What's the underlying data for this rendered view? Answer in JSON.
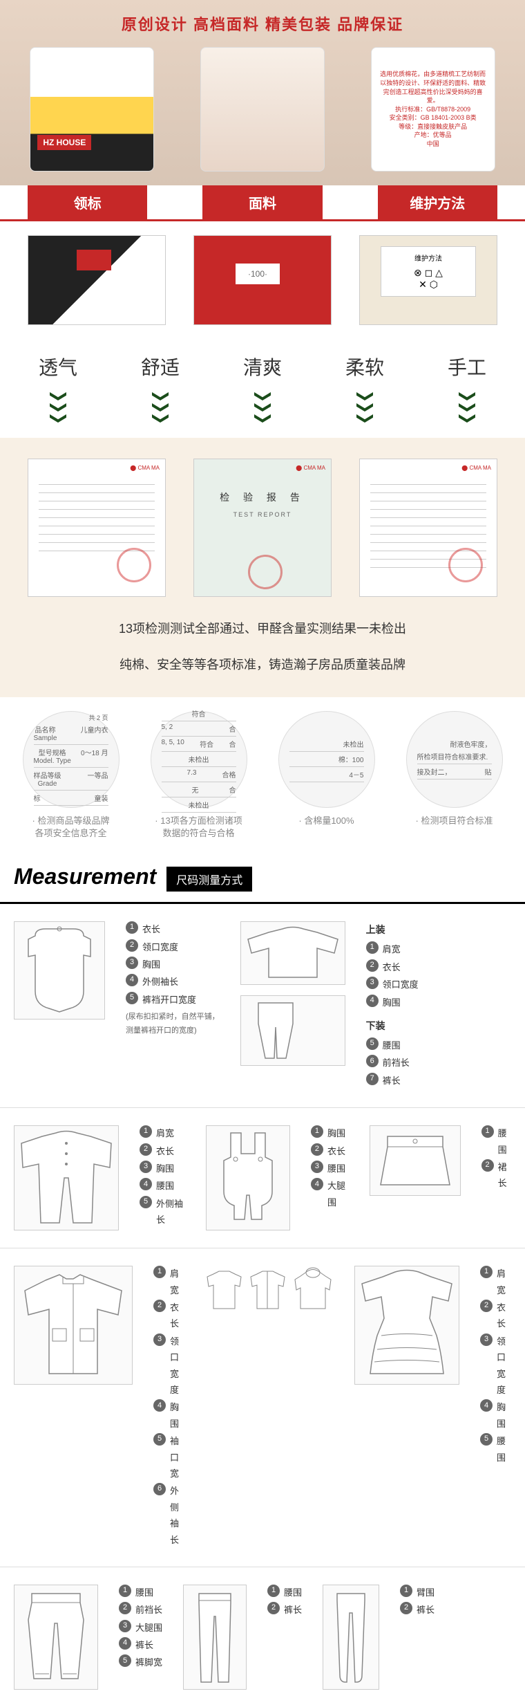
{
  "header": {
    "title": "原创设计  高档面料  精美包装  品牌保证",
    "brand_label": "HZ HOUSE",
    "pack3_text": "选用优质棉花，由多道精梳工艺纺制而\n以独特的设计、环保舒适的面料、精致\n完创造工程超高性价比深受妈妈的喜爱。\n执行标准：GB/T8878-2009\n安全类别：GB 18401-2003 B类\n等级：直接接触皮肤产品\n产地：优等品\n中国",
    "brand_color": "#c62828"
  },
  "tabs": {
    "t1": "领标",
    "t2": "面料",
    "t3": "维护方法"
  },
  "detail": {
    "size_label": "·100·",
    "care_title": "维护方法",
    "care_icons": "⊗ ◻ △\n✕ ⬡"
  },
  "features": {
    "f1": "透气",
    "f2": "舒适",
    "f3": "清爽",
    "f4": "柔软",
    "f5": "手工",
    "arrow_color": "#1b4d1b"
  },
  "cert": {
    "report_title": "检 验 报 告",
    "report_sub": "TEST REPORT",
    "text1": "13项检测测试全部通过、甲醛含量实测结果一未检出",
    "text2": "纯棉、安全等等各项标准，铸造瀚子房品质童装品牌"
  },
  "circles": {
    "c1": {
      "header": "共 2 页",
      "rows": [
        [
          "品名称\nSample",
          "儿童内衣"
        ],
        [
          "型号规格\nModel. Type",
          "0～18 月"
        ],
        [
          "样品等级\nGrade",
          "一等品"
        ],
        [
          "标",
          "童装"
        ]
      ],
      "caption": "· 检测商品等级品牌\n各项安全信息齐全"
    },
    "c2": {
      "rows": [
        [
          "",
          "符合",
          ""
        ],
        [
          "5, 2",
          "",
          "合"
        ],
        [
          "8, 5, 10",
          "符合",
          "合"
        ],
        [
          "",
          "未检出",
          ""
        ],
        [
          "",
          "7.3",
          "合格"
        ],
        [
          "",
          "无",
          "合"
        ],
        [
          "",
          "未检出",
          ""
        ]
      ],
      "caption": "· 13项各方面检测诸项\n数据的符合与合格"
    },
    "c3": {
      "rows": [
        [
          "",
          "未检出"
        ],
        [
          "",
          "棉：100"
        ],
        [
          "",
          "4－5"
        ]
      ],
      "caption": "· 含棉量100%"
    },
    "c4": {
      "header": "耐液色牢度，",
      "rows": [
        [
          "所检项目符合标准要求."
        ],
        [
          "接及封二，",
          "贴"
        ]
      ],
      "caption": "· 检测项目符合标准"
    }
  },
  "measurement": {
    "title_en": "Measurement",
    "title_cn": "尺码测量方式",
    "row1": {
      "left": [
        {
          "n": "1",
          "t": "衣长"
        },
        {
          "n": "2",
          "t": "领口宽度"
        },
        {
          "n": "3",
          "t": "胸围"
        },
        {
          "n": "4",
          "t": "外侧袖长"
        },
        {
          "n": "5",
          "t": "裤裆开口宽度"
        }
      ],
      "left_note": "(尿布扣扣紧时，自然平铺，\n测量裤裆开口的宽度)",
      "right_top_title": "上装",
      "right_top": [
        {
          "n": "1",
          "t": "肩宽"
        },
        {
          "n": "2",
          "t": "衣长"
        },
        {
          "n": "3",
          "t": "领口宽度"
        },
        {
          "n": "4",
          "t": "胸围"
        }
      ],
      "right_bot_title": "下装",
      "right_bot": [
        {
          "n": "5",
          "t": "腰围"
        },
        {
          "n": "6",
          "t": "前裆长"
        },
        {
          "n": "7",
          "t": "裤长"
        }
      ]
    },
    "row2": {
      "left": [
        {
          "n": "1",
          "t": "肩宽"
        },
        {
          "n": "2",
          "t": "衣长"
        },
        {
          "n": "3",
          "t": "胸围"
        },
        {
          "n": "4",
          "t": "腰围"
        },
        {
          "n": "5",
          "t": "外侧袖长"
        }
      ],
      "mid": [
        {
          "n": "1",
          "t": "胸围"
        },
        {
          "n": "2",
          "t": "衣长"
        },
        {
          "n": "3",
          "t": "腰围"
        },
        {
          "n": "4",
          "t": "大腿围"
        }
      ],
      "right": [
        {
          "n": "1",
          "t": "腰围"
        },
        {
          "n": "2",
          "t": "裙长"
        }
      ]
    },
    "row3": {
      "left": [
        {
          "n": "1",
          "t": "肩宽"
        },
        {
          "n": "2",
          "t": "衣长"
        },
        {
          "n": "3",
          "t": "领口宽度"
        },
        {
          "n": "4",
          "t": "胸围"
        },
        {
          "n": "5",
          "t": "袖口宽"
        },
        {
          "n": "6",
          "t": "外侧袖长"
        }
      ],
      "right": [
        {
          "n": "1",
          "t": "肩宽"
        },
        {
          "n": "2",
          "t": "衣长"
        },
        {
          "n": "3",
          "t": "领口宽度"
        },
        {
          "n": "4",
          "t": "胸围"
        },
        {
          "n": "5",
          "t": "腰围"
        }
      ]
    },
    "row4": {
      "left": [
        {
          "n": "1",
          "t": "腰围"
        },
        {
          "n": "2",
          "t": "前裆长"
        },
        {
          "n": "3",
          "t": "大腿围"
        },
        {
          "n": "4",
          "t": "裤长"
        },
        {
          "n": "5",
          "t": "裤脚宽"
        }
      ],
      "mid": [
        {
          "n": "1",
          "t": "腰围"
        },
        {
          "n": "2",
          "t": "裤长"
        }
      ],
      "right": [
        {
          "n": "1",
          "t": "臂围"
        },
        {
          "n": "2",
          "t": "裤长"
        }
      ]
    }
  }
}
